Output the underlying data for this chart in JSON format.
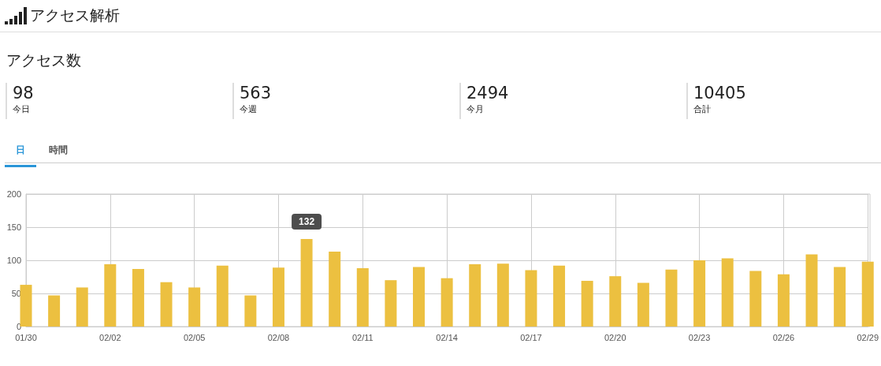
{
  "chart_data": [
    {
      "type": "other",
      "title": "アクセス解析",
      "subtitle": "アクセス数",
      "annotations": [
        "98",
        "今日",
        "563",
        "今週",
        "2494",
        "今月",
        "10405",
        "合計",
        "日",
        "時間"
      ]
    },
    {
      "type": "bar",
      "categories": [
        "01/30",
        null,
        null,
        "02/02",
        null,
        null,
        "02/05",
        null,
        null,
        "02/08",
        null,
        null,
        "02/11",
        null,
        null,
        "02/14",
        null,
        null,
        "02/17",
        null,
        null,
        "02/20",
        null,
        null,
        "02/23",
        null,
        null,
        "02/26",
        null,
        null,
        "02/29"
      ],
      "values": [
        63,
        47,
        59,
        94,
        87,
        67,
        59,
        92,
        47,
        89,
        132,
        113,
        88,
        70,
        90,
        73,
        94,
        95,
        85,
        92,
        69,
        76,
        66,
        86,
        100,
        103,
        84,
        79,
        109,
        90,
        98
      ],
      "value_labels": [
        null,
        null,
        null,
        null,
        null,
        null,
        null,
        null,
        null,
        null,
        "132",
        null,
        null,
        null,
        null,
        null,
        null,
        null,
        null,
        null,
        null,
        null,
        null,
        null,
        null,
        null,
        null,
        null,
        null,
        null,
        null
      ],
      "color": "#ecc040",
      "ylim": [
        0,
        200
      ],
      "yticks": [
        0,
        50,
        100,
        150,
        200
      ],
      "grid": true
    }
  ]
}
